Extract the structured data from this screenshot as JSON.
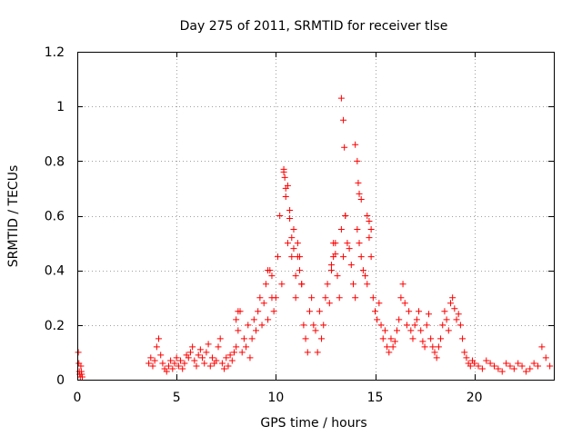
{
  "chart_data": {
    "type": "scatter",
    "title": "Day 275 of 2011, SRMTID for receiver tlse",
    "xlabel": "GPS time / hours",
    "ylabel": "SRMTID / TECUs",
    "xlim": [
      0,
      24
    ],
    "ylim": [
      0,
      1.2
    ],
    "xticks": [
      0,
      5,
      10,
      15,
      20
    ],
    "xtick_labels": [
      "0",
      "5",
      "10",
      "15",
      "20"
    ],
    "yticks": [
      0,
      0.2,
      0.4,
      0.6,
      0.8,
      1,
      1.2
    ],
    "ytick_labels": [
      "0",
      "0.2",
      "0.4",
      "0.6",
      "0.8",
      "1",
      "1.2"
    ],
    "grid": true,
    "marker": "+",
    "series": [
      {
        "name": "SRMTID",
        "color": "#ff0000",
        "x": [
          0.05,
          0.08,
          0.1,
          0.12,
          0.15,
          0.18,
          0.2,
          0.22,
          0.25,
          3.6,
          3.7,
          3.8,
          3.9,
          4.0,
          4.1,
          4.2,
          4.3,
          4.4,
          4.5,
          4.6,
          4.7,
          4.8,
          4.9,
          5.0,
          5.1,
          5.2,
          5.3,
          5.4,
          5.5,
          5.6,
          5.7,
          5.8,
          5.9,
          6.0,
          6.1,
          6.2,
          6.3,
          6.4,
          6.5,
          6.6,
          6.7,
          6.8,
          6.9,
          7.0,
          7.1,
          7.2,
          7.3,
          7.4,
          7.5,
          7.6,
          7.7,
          7.8,
          7.9,
          8.0,
          8.1,
          8.2,
          8.3,
          8.4,
          8.5,
          8.6,
          8.7,
          8.8,
          8.9,
          9.0,
          9.1,
          9.2,
          9.3,
          9.4,
          9.5,
          9.6,
          9.7,
          9.8,
          9.9,
          10.0,
          10.1,
          10.2,
          10.3,
          10.4,
          10.5,
          10.6,
          10.7,
          10.8,
          10.9,
          11.0,
          11.1,
          11.2,
          11.3,
          11.4,
          11.5,
          11.6,
          11.7,
          11.8,
          11.9,
          12.0,
          12.1,
          12.2,
          12.3,
          12.4,
          12.5,
          12.6,
          12.7,
          12.8,
          12.9,
          13.0,
          13.1,
          13.2,
          13.3,
          13.4,
          13.5,
          13.6,
          13.7,
          13.8,
          13.9,
          14.0,
          14.1,
          14.2,
          14.3,
          14.4,
          14.5,
          14.6,
          14.7,
          14.8,
          14.9,
          15.0,
          15.1,
          15.2,
          15.3,
          15.4,
          15.5,
          15.6,
          15.7,
          15.8,
          15.9,
          16.0,
          16.1,
          16.2,
          16.3,
          16.4,
          16.5,
          16.6,
          16.7,
          16.8,
          16.9,
          17.0,
          17.1,
          17.2,
          17.3,
          17.4,
          17.5,
          17.6,
          17.7,
          17.8,
          17.9,
          18.0,
          18.1,
          18.2,
          18.3,
          18.4,
          18.5,
          18.6,
          18.7,
          18.8,
          18.9,
          19.0,
          19.1,
          19.2,
          19.3,
          19.4,
          19.5,
          19.6,
          19.7,
          19.8,
          19.9,
          20.0,
          20.2,
          20.4,
          20.6,
          20.8,
          21.0,
          21.2,
          21.4,
          21.6,
          21.8,
          22.0,
          22.2,
          22.4,
          22.6,
          22.8,
          23.0,
          23.2,
          23.4,
          23.6,
          23.8,
          10.4,
          10.45,
          10.5,
          10.6,
          10.7,
          10.8,
          10.9,
          13.3,
          13.4,
          13.45,
          13.5,
          14.0,
          14.1,
          14.15,
          14.2,
          14.3,
          14.6,
          14.7,
          14.8,
          12.8,
          12.9,
          13.0,
          11.0,
          11.1,
          11.2,
          11.3,
          9.6,
          9.8,
          8.0,
          8.1
        ],
        "y": [
          0.1,
          0.06,
          0.03,
          0.02,
          0.01,
          0.05,
          0.03,
          0.02,
          0.01,
          0.06,
          0.08,
          0.05,
          0.07,
          0.12,
          0.15,
          0.09,
          0.06,
          0.04,
          0.03,
          0.05,
          0.07,
          0.04,
          0.06,
          0.08,
          0.05,
          0.07,
          0.04,
          0.06,
          0.09,
          0.08,
          0.1,
          0.12,
          0.07,
          0.05,
          0.09,
          0.11,
          0.08,
          0.06,
          0.1,
          0.13,
          0.05,
          0.08,
          0.06,
          0.07,
          0.12,
          0.15,
          0.06,
          0.04,
          0.08,
          0.05,
          0.09,
          0.07,
          0.1,
          0.12,
          0.18,
          0.25,
          0.1,
          0.15,
          0.12,
          0.2,
          0.08,
          0.15,
          0.22,
          0.18,
          0.25,
          0.3,
          0.2,
          0.28,
          0.35,
          0.22,
          0.4,
          0.3,
          0.25,
          0.3,
          0.45,
          0.6,
          0.35,
          0.76,
          0.7,
          0.5,
          0.62,
          0.45,
          0.55,
          0.3,
          0.5,
          0.45,
          0.35,
          0.2,
          0.15,
          0.1,
          0.25,
          0.3,
          0.2,
          0.18,
          0.1,
          0.25,
          0.15,
          0.2,
          0.3,
          0.35,
          0.28,
          0.4,
          0.45,
          0.5,
          0.38,
          0.3,
          0.55,
          0.45,
          0.6,
          0.5,
          0.48,
          0.42,
          0.35,
          0.3,
          0.55,
          0.5,
          0.45,
          0.4,
          0.38,
          0.35,
          0.52,
          0.45,
          0.3,
          0.25,
          0.22,
          0.28,
          0.2,
          0.15,
          0.18,
          0.12,
          0.1,
          0.15,
          0.12,
          0.14,
          0.18,
          0.22,
          0.3,
          0.35,
          0.28,
          0.2,
          0.25,
          0.18,
          0.15,
          0.2,
          0.22,
          0.25,
          0.18,
          0.14,
          0.12,
          0.2,
          0.24,
          0.15,
          0.12,
          0.1,
          0.08,
          0.12,
          0.15,
          0.2,
          0.25,
          0.22,
          0.18,
          0.28,
          0.3,
          0.26,
          0.22,
          0.24,
          0.2,
          0.15,
          0.1,
          0.08,
          0.06,
          0.05,
          0.07,
          0.06,
          0.05,
          0.04,
          0.07,
          0.06,
          0.05,
          0.04,
          0.03,
          0.06,
          0.05,
          0.04,
          0.06,
          0.05,
          0.03,
          0.04,
          0.06,
          0.05,
          0.12,
          0.08,
          0.05,
          0.77,
          0.74,
          0.67,
          0.71,
          0.59,
          0.52,
          0.48,
          1.03,
          0.95,
          0.85,
          0.6,
          0.86,
          0.8,
          0.72,
          0.68,
          0.66,
          0.6,
          0.58,
          0.55,
          0.42,
          0.5,
          0.46,
          0.38,
          0.45,
          0.4,
          0.35,
          0.4,
          0.38,
          0.22,
          0.25
        ]
      }
    ]
  }
}
